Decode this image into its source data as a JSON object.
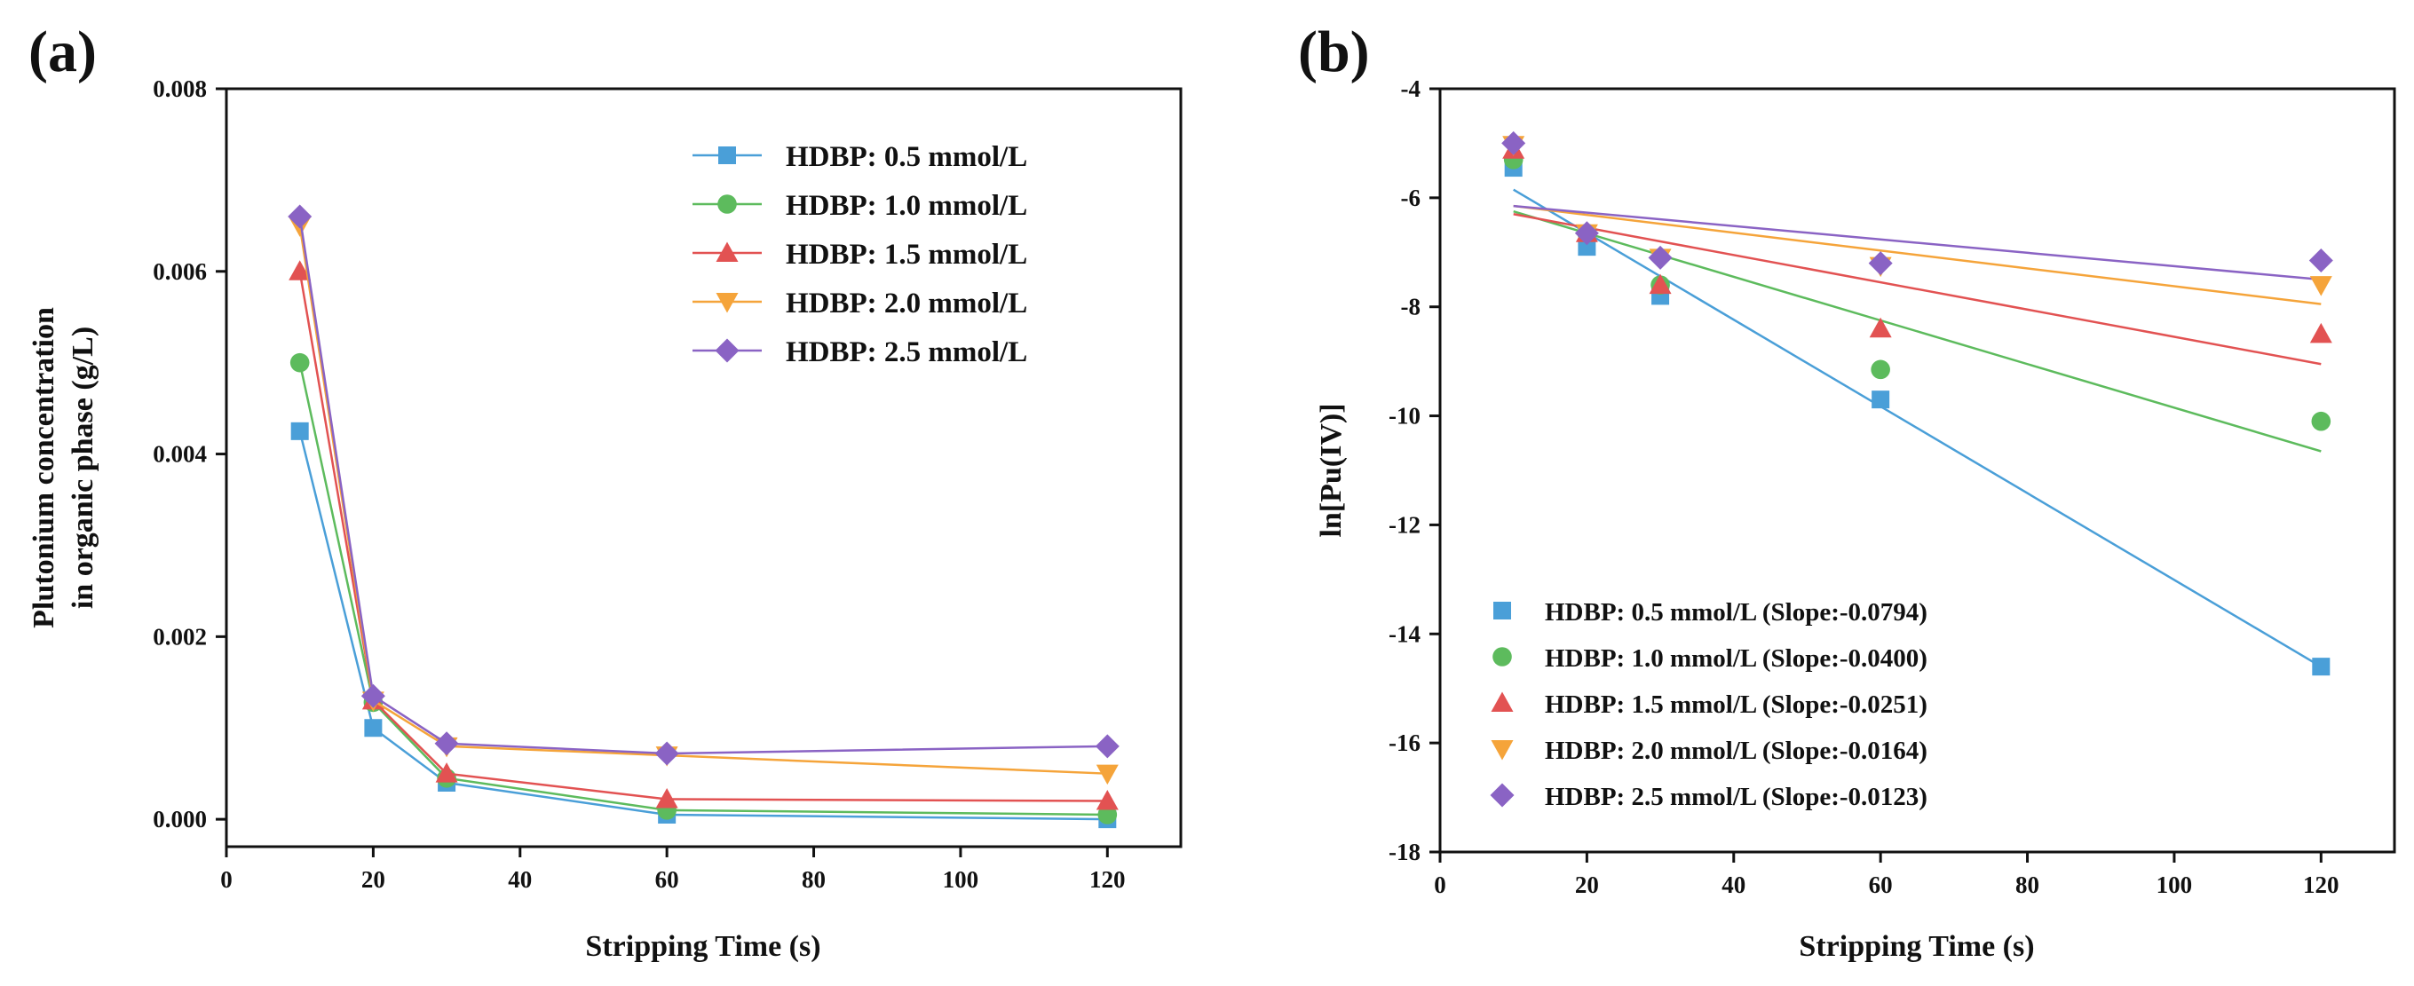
{
  "chart_data": [
    {
      "panel": "(a)",
      "type": "line",
      "xlabel": "Stripping Time (s)",
      "ylabel": [
        "Plutonium concentration",
        "in organic phase (g/L)"
      ],
      "xlim": [
        0,
        130
      ],
      "ylim": [
        -0.0003,
        0.008
      ],
      "xticks": [
        0,
        20,
        40,
        60,
        80,
        100,
        120
      ],
      "xtick_labels": [
        "0",
        "20",
        "40",
        "60",
        "80",
        "100",
        "120"
      ],
      "yticks": [
        0.0,
        0.002,
        0.004,
        0.006,
        0.008
      ],
      "ytick_labels": [
        "0.000",
        "0.002",
        "0.004",
        "0.006",
        "0.008"
      ],
      "legend_position": "top-right",
      "x": [
        10,
        20,
        30,
        60,
        120
      ],
      "series": [
        {
          "name": "HDBP: 0.5 mmol/L",
          "color": "#4a9fd8",
          "marker": "square",
          "values": [
            0.00425,
            0.001,
            0.0004,
            5e-05,
            0.0
          ]
        },
        {
          "name": "HDBP: 1.0 mmol/L",
          "color": "#5dbb5d",
          "marker": "circle",
          "values": [
            0.005,
            0.00128,
            0.00045,
            0.0001,
            5e-05
          ]
        },
        {
          "name": "HDBP: 1.5 mmol/L",
          "color": "#e25252",
          "marker": "triangle-up",
          "values": [
            0.006,
            0.0013,
            0.0005,
            0.00022,
            0.0002
          ]
        },
        {
          "name": "HDBP: 2.0 mmol/L",
          "color": "#f5a43a",
          "marker": "triangle-down",
          "values": [
            0.0065,
            0.0013,
            0.0008,
            0.0007,
            0.0005
          ]
        },
        {
          "name": "HDBP: 2.5 mmol/L",
          "color": "#8a63c4",
          "marker": "diamond",
          "values": [
            0.0066,
            0.00135,
            0.00083,
            0.00072,
            0.0008
          ]
        }
      ]
    },
    {
      "panel": "(b)",
      "type": "scatter",
      "xlabel": "Stripping Time (s)",
      "ylabel": "ln[Pu(IV)]",
      "xlim": [
        0,
        130
      ],
      "ylim": [
        -18,
        -4
      ],
      "xticks": [
        0,
        20,
        40,
        60,
        80,
        100,
        120
      ],
      "xtick_labels": [
        "0",
        "20",
        "40",
        "60",
        "80",
        "100",
        "120"
      ],
      "yticks": [
        -18,
        -16,
        -14,
        -12,
        -10,
        -8,
        -6,
        -4
      ],
      "ytick_labels": [
        "-18",
        "-16",
        "-14",
        "-12",
        "-10",
        "-8",
        "-6",
        "-4"
      ],
      "legend_position": "bottom-left",
      "x": [
        10,
        20,
        30,
        60,
        120
      ],
      "series": [
        {
          "name": "HDBP: 0.5 mmol/L (Slope:-0.0794)",
          "color": "#4a9fd8",
          "marker": "square",
          "values": [
            -5.45,
            -6.9,
            -7.8,
            -9.7,
            -14.6
          ],
          "fit": [
            -5.85,
            -14.6
          ]
        },
        {
          "name": "HDBP: 1.0 mmol/L (Slope:-0.0400)",
          "color": "#5dbb5d",
          "marker": "circle",
          "values": [
            -5.3,
            -6.65,
            -7.6,
            -9.15,
            -10.1
          ],
          "fit": [
            -6.25,
            -10.65
          ]
        },
        {
          "name": "HDBP: 1.5 mmol/L (Slope:-0.0251)",
          "color": "#e25252",
          "marker": "triangle-up",
          "values": [
            -5.12,
            -6.65,
            -7.6,
            -8.4,
            -8.5
          ],
          "fit": [
            -6.3,
            -9.05
          ]
        },
        {
          "name": "HDBP: 2.0 mmol/L (Slope:-0.0164)",
          "color": "#f5a43a",
          "marker": "triangle-down",
          "values": [
            -5.03,
            -6.65,
            -7.1,
            -7.25,
            -7.6
          ],
          "fit": [
            -6.15,
            -7.95
          ]
        },
        {
          "name": "HDBP: 2.5 mmol/L (Slope:-0.0123)",
          "color": "#8a63c4",
          "marker": "diamond",
          "values": [
            -5.0,
            -6.65,
            -7.1,
            -7.2,
            -7.15
          ],
          "fit": [
            -6.15,
            -7.5
          ]
        }
      ]
    }
  ]
}
